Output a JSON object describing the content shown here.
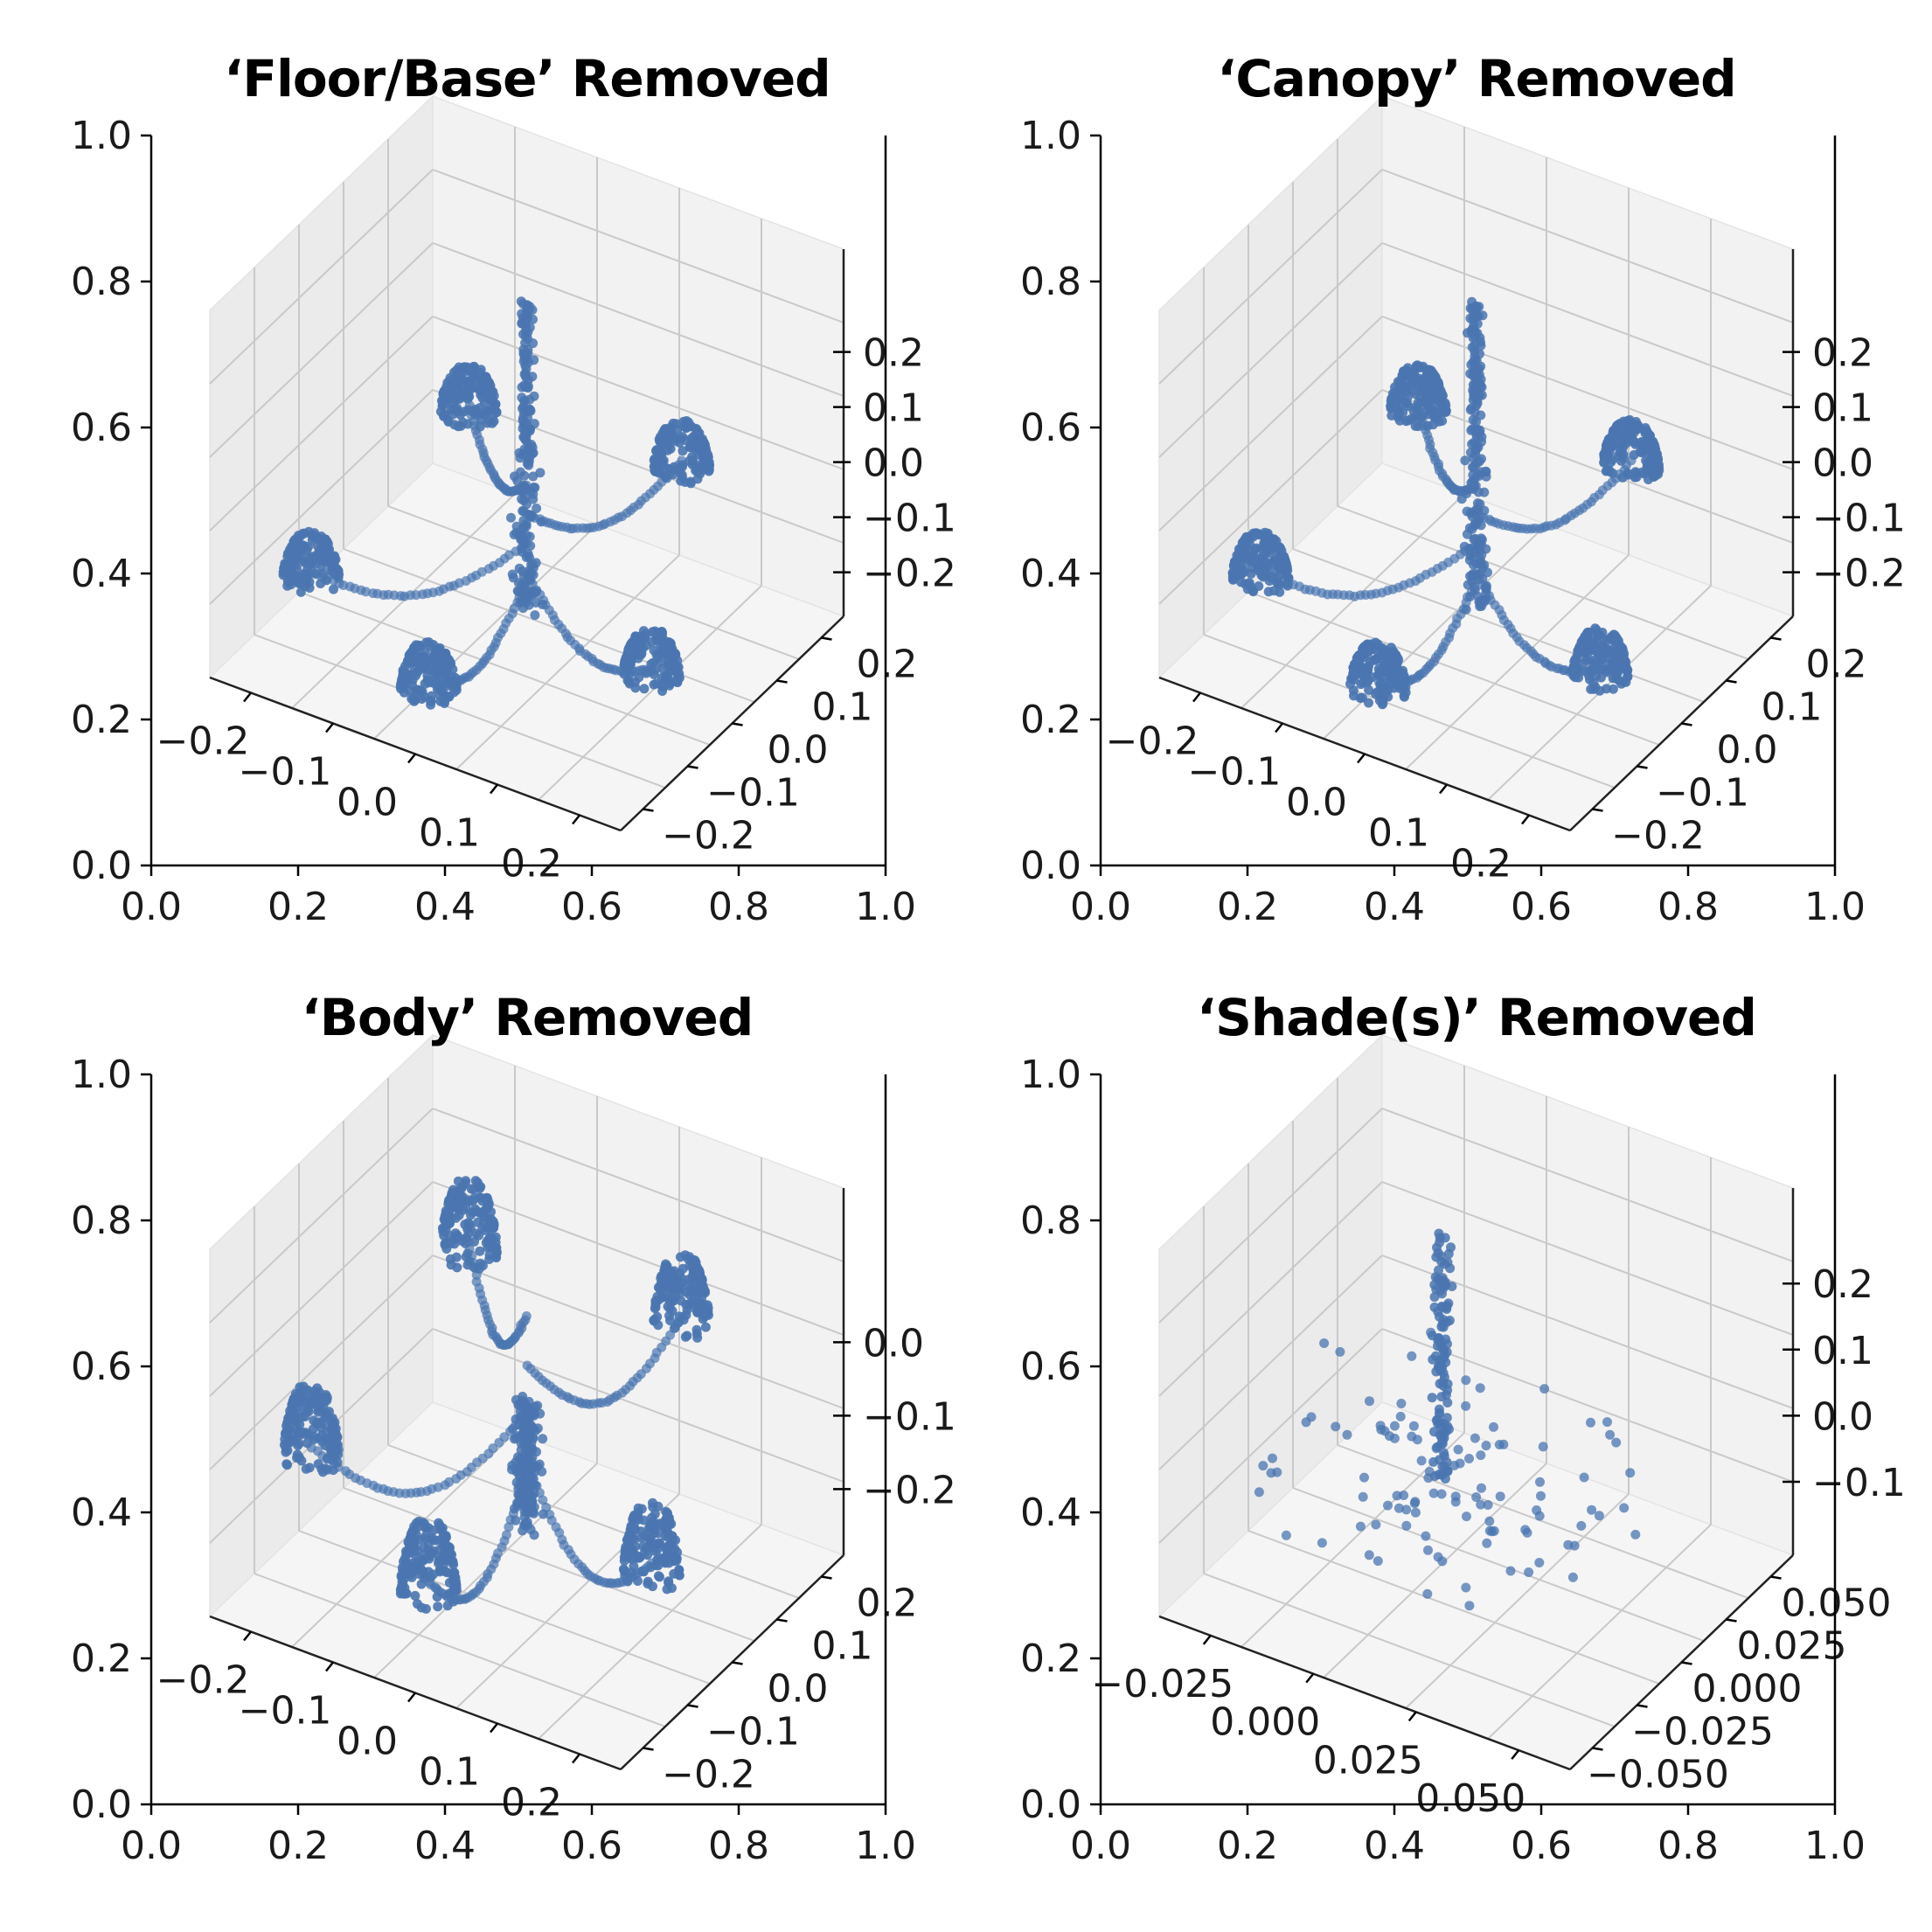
{
  "figure": {
    "marker_color": "#4a76b0",
    "pane_color": "#f2f2f2"
  },
  "chart_data": [
    {
      "type": "scatter",
      "title": "‘Floor/Base’ Removed",
      "outer_axes": {
        "x_ticks": [
          "0.0",
          "0.2",
          "0.4",
          "0.6",
          "0.8",
          "1.0"
        ],
        "y_ticks": [
          "0.0",
          "0.2",
          "0.4",
          "0.6",
          "0.8",
          "1.0"
        ],
        "xlim": [
          0,
          1
        ],
        "ylim": [
          0,
          1
        ]
      },
      "axis3d": {
        "x_ticks": [
          "−0.2",
          "−0.1",
          "0.0",
          "0.1",
          "0.2"
        ],
        "y_ticks": [
          "−0.2",
          "−0.1",
          "0.0",
          "0.1",
          "0.2"
        ],
        "z_ticks": [
          "−0.2",
          "−0.1",
          "0.0",
          "0.1",
          "0.2"
        ],
        "xlim": [
          -0.25,
          0.25
        ],
        "ylim": [
          -0.25,
          0.25
        ],
        "zlim": [
          -0.25,
          0.25
        ]
      },
      "series": [
        {
          "clusters": [
            {
              "part": "shade",
              "center": [
                -0.17,
                -0.17,
                -0.12
              ]
            },
            {
              "part": "shade",
              "center": [
                0.0,
                -0.22,
                -0.17
              ]
            },
            {
              "part": "shade",
              "center": [
                0.19,
                -0.07,
                -0.16
              ]
            },
            {
              "part": "shade",
              "center": [
                0.08,
                0.2,
                -0.08
              ]
            },
            {
              "part": "shade",
              "center": [
                -0.13,
                0.11,
                -0.04
              ]
            }
          ],
          "stem": {
            "x": 0.0,
            "y": 0.0,
            "z_range": [
              -0.2,
              0.22
            ]
          },
          "arms": true
        }
      ]
    },
    {
      "type": "scatter",
      "title": "‘Canopy’ Removed",
      "outer_axes": {
        "x_ticks": [
          "0.0",
          "0.2",
          "0.4",
          "0.6",
          "0.8",
          "1.0"
        ],
        "y_ticks": [
          "0.0",
          "0.2",
          "0.4",
          "0.6",
          "0.8",
          "1.0"
        ],
        "xlim": [
          0,
          1
        ],
        "ylim": [
          0,
          1
        ]
      },
      "axis3d": {
        "x_ticks": [
          "−0.2",
          "−0.1",
          "0.0",
          "0.1",
          "0.2"
        ],
        "y_ticks": [
          "−0.2",
          "−0.1",
          "0.0",
          "0.1",
          "0.2"
        ],
        "z_ticks": [
          "−0.2",
          "−0.1",
          "0.0",
          "0.1",
          "0.2"
        ],
        "xlim": [
          -0.25,
          0.25
        ],
        "ylim": [
          -0.25,
          0.25
        ],
        "zlim": [
          -0.25,
          0.25
        ]
      },
      "series": [
        {
          "clusters": [
            {
              "part": "shade",
              "center": [
                -0.17,
                -0.17,
                -0.12
              ]
            },
            {
              "part": "shade",
              "center": [
                0.0,
                -0.22,
                -0.17
              ]
            },
            {
              "part": "shade",
              "center": [
                0.19,
                -0.07,
                -0.16
              ]
            },
            {
              "part": "shade",
              "center": [
                0.08,
                0.2,
                -0.08
              ]
            },
            {
              "part": "shade",
              "center": [
                -0.13,
                0.11,
                -0.04
              ]
            }
          ],
          "stem": {
            "x": 0.0,
            "y": 0.0,
            "z_range": [
              -0.2,
              0.22
            ]
          },
          "arms": true
        }
      ]
    },
    {
      "type": "scatter",
      "title": "‘Body’ Removed",
      "outer_axes": {
        "x_ticks": [
          "0.0",
          "0.2",
          "0.4",
          "0.6",
          "0.8",
          "1.0"
        ],
        "y_ticks": [
          "0.0",
          "0.2",
          "0.4",
          "0.6",
          "0.8",
          "1.0"
        ],
        "xlim": [
          0,
          1
        ],
        "ylim": [
          0,
          1
        ]
      },
      "axis3d": {
        "x_ticks": [
          "−0.2",
          "−0.1",
          "0.0",
          "0.1",
          "0.2"
        ],
        "y_ticks": [
          "−0.2",
          "−0.1",
          "0.0",
          "0.1",
          "0.2"
        ],
        "z_ticks": [
          "−0.2",
          "−0.1",
          "0.0"
        ],
        "xlim": [
          -0.25,
          0.25
        ],
        "ylim": [
          -0.25,
          0.25
        ],
        "zlim": [
          -0.25,
          0.05
        ]
      },
      "series": [
        {
          "clusters": [
            {
              "part": "shade",
              "center": [
                -0.17,
                -0.17,
                -0.12
              ]
            },
            {
              "part": "shade",
              "center": [
                0.0,
                -0.22,
                -0.17
              ]
            },
            {
              "part": "shade",
              "center": [
                0.19,
                -0.07,
                -0.16
              ]
            },
            {
              "part": "shade",
              "center": [
                0.08,
                0.2,
                -0.08
              ]
            },
            {
              "part": "shade",
              "center": [
                -0.13,
                0.11,
                -0.04
              ]
            }
          ],
          "stem": {
            "x": 0.0,
            "y": 0.0,
            "z_range": [
              -0.2,
              -0.1
            ]
          },
          "arms": true
        }
      ]
    },
    {
      "type": "scatter",
      "title": "‘Shade(s)’ Removed",
      "outer_axes": {
        "x_ticks": [
          "0.0",
          "0.2",
          "0.4",
          "0.6",
          "0.8",
          "1.0"
        ],
        "y_ticks": [
          "0.0",
          "0.2",
          "0.4",
          "0.6",
          "0.8",
          "1.0"
        ],
        "xlim": [
          0,
          1
        ],
        "ylim": [
          0,
          1
        ]
      },
      "axis3d": {
        "x_ticks": [
          "−0.025",
          "0.000",
          "0.025",
          "0.050"
        ],
        "y_ticks": [
          "−0.050",
          "−0.025",
          "0.000",
          "0.025",
          "0.050"
        ],
        "z_ticks": [
          "−0.1",
          "0.0",
          "0.1",
          "0.2"
        ],
        "xlim": [
          -0.05,
          0.07
        ],
        "ylim": [
          -0.06,
          0.06
        ],
        "zlim": [
          -0.15,
          0.25
        ]
      },
      "series": [
        {
          "clusters": [],
          "stem": {
            "x": 0.0,
            "y": 0.0,
            "z_range": [
              -0.05,
              0.22
            ]
          },
          "arms": false,
          "sparse": true
        }
      ]
    }
  ]
}
